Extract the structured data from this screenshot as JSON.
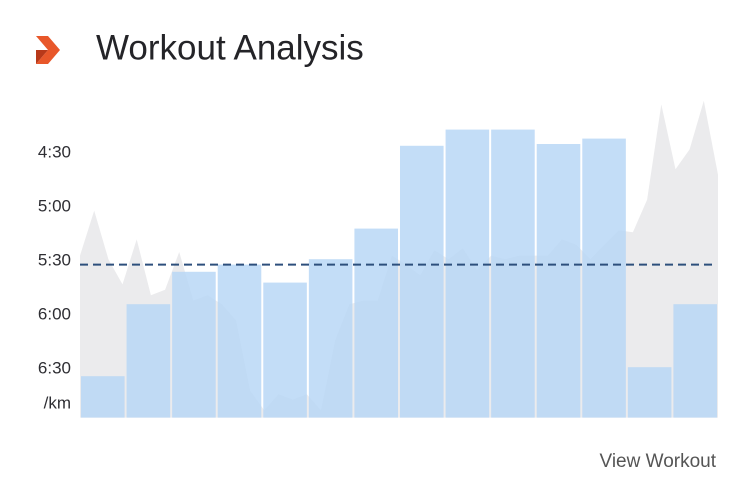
{
  "chart_data": {
    "type": "bar",
    "title": "Workout Analysis",
    "ylabel": "/km",
    "categories": [
      null,
      null,
      null,
      null,
      null,
      null,
      null,
      null,
      null,
      null,
      null,
      null,
      null,
      null
    ],
    "values": [
      394,
      354,
      336,
      332,
      342,
      329,
      312,
      266,
      257,
      257,
      265,
      262,
      389,
      354
    ],
    "color": "#b6d5f5",
    "ylim": [
      417,
      240
    ],
    "yticks": [
      {
        "value": 270,
        "label": "4:30"
      },
      {
        "value": 300,
        "label": "5:00"
      },
      {
        "value": 330,
        "label": "5:30"
      },
      {
        "value": 360,
        "label": "6:00"
      },
      {
        "value": 390,
        "label": "6:30"
      }
    ],
    "average": 332,
    "average_color": "#2d4f7c",
    "area": {
      "color": "#ebebed",
      "values": [
        327,
        302,
        329,
        343,
        318,
        349,
        346,
        325,
        352,
        349,
        354,
        363,
        402,
        413,
        404,
        407,
        404,
        413,
        374,
        354,
        352,
        352,
        327,
        332,
        338,
        324,
        329,
        323,
        335,
        327,
        329,
        327,
        327,
        327,
        318,
        321,
        329,
        321,
        313,
        314,
        296,
        243,
        279,
        268,
        241,
        282
      ]
    }
  },
  "link": "View Workout"
}
